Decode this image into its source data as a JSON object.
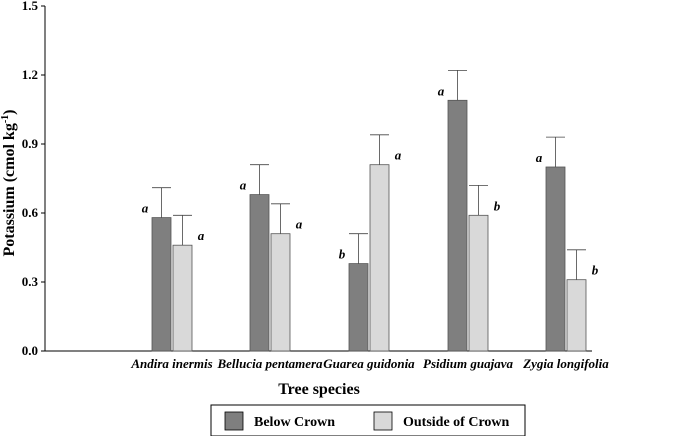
{
  "chart_data": {
    "type": "bar",
    "xlabel": "Tree species",
    "ylabel_main": "Potassium (cmol kg",
    "ylabel_sup": "-1",
    "ylabel_close": ")",
    "ylim": [
      0,
      1.5
    ],
    "yticks": [
      "0.0",
      "0.3",
      "0.6",
      "0.9",
      "1.2",
      "1.5"
    ],
    "categories": [
      "Andira inermis",
      "Bellucia pentamera",
      "Guarea guidonia",
      "Psidium guajava",
      "Zygia longifolia"
    ],
    "series": [
      {
        "name": "Below Crown",
        "color": "#7f7f7f",
        "values": [
          0.58,
          0.68,
          0.38,
          1.09,
          0.8
        ],
        "errors": [
          0.13,
          0.13,
          0.13,
          0.13,
          0.13
        ],
        "letters": [
          "a",
          "a",
          "b",
          "a",
          "a"
        ]
      },
      {
        "name": "Outside of Crown",
        "color": "#d9d9d9",
        "values": [
          0.46,
          0.51,
          0.81,
          0.59,
          0.31
        ],
        "errors": [
          0.13,
          0.13,
          0.13,
          0.13,
          0.13
        ],
        "letters": [
          "a",
          "a",
          "a",
          "b",
          "b"
        ]
      }
    ],
    "grid": false,
    "legend_position": "bottom"
  }
}
